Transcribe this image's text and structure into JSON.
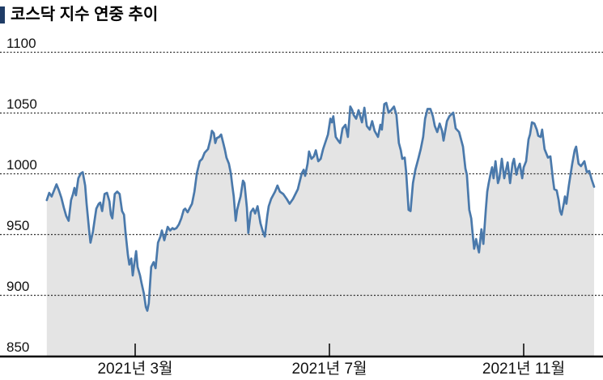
{
  "header": {
    "title": "코스닥 지수 연중 추이",
    "accent_color": "#1f3c66"
  },
  "chart_data": {
    "type": "area",
    "title": "코스닥 지수 연중 추이",
    "series_name": "코스닥 지수",
    "xlabel": "",
    "ylabel": "",
    "ylim": [
      850,
      1100
    ],
    "y_ticks": [
      850,
      900,
      950,
      1000,
      1050,
      1100
    ],
    "x_ticks": [
      {
        "month": 3,
        "label": "2021년 3월"
      },
      {
        "month": 7,
        "label": "2021년 7월"
      },
      {
        "month": 11,
        "label": "2021년 11월"
      }
    ],
    "grid": "dotted-horizontal",
    "legend": "none",
    "line_color": "#4a79ab",
    "fill_color": "#e4e4e4",
    "axis_color": "#000000",
    "points": [
      [
        1.18,
        978
      ],
      [
        1.23,
        984
      ],
      [
        1.28,
        981
      ],
      [
        1.33,
        986
      ],
      [
        1.38,
        991
      ],
      [
        1.43,
        986
      ],
      [
        1.48,
        980
      ],
      [
        1.53,
        972
      ],
      [
        1.58,
        965
      ],
      [
        1.63,
        961
      ],
      [
        1.68,
        978
      ],
      [
        1.72,
        983
      ],
      [
        1.75,
        988
      ],
      [
        1.78,
        982
      ],
      [
        1.83,
        996
      ],
      [
        1.88,
        1000
      ],
      [
        1.92,
        1001
      ],
      [
        1.97,
        990
      ],
      [
        2.0,
        975
      ],
      [
        2.05,
        954
      ],
      [
        2.08,
        943
      ],
      [
        2.13,
        952
      ],
      [
        2.17,
        963
      ],
      [
        2.2,
        971
      ],
      [
        2.25,
        975
      ],
      [
        2.28,
        976
      ],
      [
        2.32,
        969
      ],
      [
        2.37,
        983
      ],
      [
        2.42,
        984
      ],
      [
        2.47,
        977
      ],
      [
        2.5,
        966
      ],
      [
        2.53,
        963
      ],
      [
        2.58,
        983
      ],
      [
        2.63,
        985
      ],
      [
        2.68,
        983
      ],
      [
        2.73,
        969
      ],
      [
        2.77,
        966
      ],
      [
        2.8,
        952
      ],
      [
        2.85,
        933
      ],
      [
        2.88,
        925
      ],
      [
        2.92,
        930
      ],
      [
        2.95,
        916
      ],
      [
        2.98,
        925
      ],
      [
        3.02,
        936
      ],
      [
        3.05,
        923
      ],
      [
        3.1,
        916
      ],
      [
        3.13,
        910
      ],
      [
        3.18,
        901
      ],
      [
        3.22,
        890
      ],
      [
        3.25,
        887
      ],
      [
        3.28,
        893
      ],
      [
        3.33,
        923
      ],
      [
        3.38,
        927
      ],
      [
        3.42,
        922
      ],
      [
        3.47,
        943
      ],
      [
        3.52,
        948
      ],
      [
        3.55,
        953
      ],
      [
        3.6,
        945
      ],
      [
        3.67,
        956
      ],
      [
        3.72,
        953
      ],
      [
        3.77,
        955
      ],
      [
        3.8,
        954
      ],
      [
        3.85,
        955
      ],
      [
        3.9,
        958
      ],
      [
        3.95,
        963
      ],
      [
        4.0,
        970
      ],
      [
        4.03,
        971
      ],
      [
        4.08,
        968
      ],
      [
        4.13,
        972
      ],
      [
        4.17,
        975
      ],
      [
        4.22,
        985
      ],
      [
        4.27,
        1000
      ],
      [
        4.33,
        1010
      ],
      [
        4.38,
        1012
      ],
      [
        4.43,
        1017
      ],
      [
        4.5,
        1020
      ],
      [
        4.55,
        1028
      ],
      [
        4.58,
        1035
      ],
      [
        4.62,
        1033
      ],
      [
        4.65,
        1025
      ],
      [
        4.68,
        1029
      ],
      [
        4.73,
        1030
      ],
      [
        4.77,
        1032
      ],
      [
        4.82,
        1024
      ],
      [
        4.85,
        1019
      ],
      [
        4.88,
        1013
      ],
      [
        4.93,
        1008
      ],
      [
        4.97,
        1000
      ],
      [
        5.0,
        990
      ],
      [
        5.03,
        981
      ],
      [
        5.07,
        961
      ],
      [
        5.1,
        970
      ],
      [
        5.13,
        975
      ],
      [
        5.17,
        981
      ],
      [
        5.22,
        994
      ],
      [
        5.25,
        992
      ],
      [
        5.3,
        972
      ],
      [
        5.33,
        951
      ],
      [
        5.38,
        968
      ],
      [
        5.43,
        971
      ],
      [
        5.47,
        967
      ],
      [
        5.52,
        973
      ],
      [
        5.58,
        959
      ],
      [
        5.63,
        952
      ],
      [
        5.67,
        948
      ],
      [
        5.72,
        965
      ],
      [
        5.75,
        973
      ],
      [
        5.8,
        979
      ],
      [
        5.88,
        985
      ],
      [
        5.93,
        990
      ],
      [
        5.98,
        985
      ],
      [
        6.05,
        983
      ],
      [
        6.12,
        979
      ],
      [
        6.18,
        975
      ],
      [
        6.25,
        979
      ],
      [
        6.3,
        983
      ],
      [
        6.35,
        987
      ],
      [
        6.38,
        992
      ],
      [
        6.43,
        1000
      ],
      [
        6.47,
        1003
      ],
      [
        6.5,
        998
      ],
      [
        6.55,
        1008
      ],
      [
        6.58,
        1018
      ],
      [
        6.63,
        1012
      ],
      [
        6.68,
        1014
      ],
      [
        6.72,
        1019
      ],
      [
        6.77,
        1010
      ],
      [
        6.82,
        1012
      ],
      [
        6.87,
        1020
      ],
      [
        6.92,
        1026
      ],
      [
        6.97,
        1032
      ],
      [
        7.02,
        1045
      ],
      [
        7.05,
        1042
      ],
      [
        7.08,
        1047
      ],
      [
        7.13,
        1030
      ],
      [
        7.18,
        1027
      ],
      [
        7.22,
        1025
      ],
      [
        7.27,
        1037
      ],
      [
        7.33,
        1040
      ],
      [
        7.38,
        1030
      ],
      [
        7.43,
        1055
      ],
      [
        7.47,
        1052
      ],
      [
        7.5,
        1048
      ],
      [
        7.55,
        1045
      ],
      [
        7.6,
        1052
      ],
      [
        7.67,
        1042
      ],
      [
        7.72,
        1054
      ],
      [
        7.77,
        1039
      ],
      [
        7.83,
        1036
      ],
      [
        7.88,
        1043
      ],
      [
        7.93,
        1035
      ],
      [
        8.0,
        1030
      ],
      [
        8.05,
        1040
      ],
      [
        8.08,
        1036
      ],
      [
        8.13,
        1057
      ],
      [
        8.17,
        1058
      ],
      [
        8.22,
        1050
      ],
      [
        8.27,
        1052
      ],
      [
        8.33,
        1055
      ],
      [
        8.38,
        1048
      ],
      [
        8.43,
        1025
      ],
      [
        8.47,
        1019
      ],
      [
        8.5,
        1012
      ],
      [
        8.55,
        1013
      ],
      [
        8.58,
        1001
      ],
      [
        8.63,
        970
      ],
      [
        8.67,
        969
      ],
      [
        8.72,
        992
      ],
      [
        8.77,
        1003
      ],
      [
        8.83,
        1012
      ],
      [
        8.88,
        1020
      ],
      [
        8.93,
        1030
      ],
      [
        8.97,
        1045
      ],
      [
        9.02,
        1053
      ],
      [
        9.08,
        1053
      ],
      [
        9.13,
        1047
      ],
      [
        9.17,
        1039
      ],
      [
        9.22,
        1034
      ],
      [
        9.27,
        1041
      ],
      [
        9.32,
        1035
      ],
      [
        9.35,
        1027
      ],
      [
        9.42,
        1043
      ],
      [
        9.47,
        1047
      ],
      [
        9.55,
        1050
      ],
      [
        9.6,
        1037
      ],
      [
        9.67,
        1034
      ],
      [
        9.75,
        1022
      ],
      [
        9.8,
        1004
      ],
      [
        9.83,
        999
      ],
      [
        9.88,
        970
      ],
      [
        9.92,
        963
      ],
      [
        9.95,
        950
      ],
      [
        9.98,
        938
      ],
      [
        10.02,
        946
      ],
      [
        10.05,
        940
      ],
      [
        10.08,
        935
      ],
      [
        10.13,
        954
      ],
      [
        10.17,
        942
      ],
      [
        10.22,
        970
      ],
      [
        10.25,
        985
      ],
      [
        10.28,
        992
      ],
      [
        10.32,
        1000
      ],
      [
        10.35,
        1005
      ],
      [
        10.38,
        996
      ],
      [
        10.42,
        1010
      ],
      [
        10.47,
        992
      ],
      [
        10.5,
        996
      ],
      [
        10.55,
        1012
      ],
      [
        10.6,
        996
      ],
      [
        10.67,
        1009
      ],
      [
        10.72,
        992
      ],
      [
        10.77,
        1008
      ],
      [
        10.8,
        1012
      ],
      [
        10.85,
        999
      ],
      [
        10.88,
        1004
      ],
      [
        10.92,
        1008
      ],
      [
        10.97,
        996
      ],
      [
        11.0,
        1005
      ],
      [
        11.05,
        1010
      ],
      [
        11.1,
        1028
      ],
      [
        11.13,
        1032
      ],
      [
        11.17,
        1042
      ],
      [
        11.22,
        1041
      ],
      [
        11.27,
        1036
      ],
      [
        11.3,
        1031
      ],
      [
        11.35,
        1030
      ],
      [
        11.38,
        1036
      ],
      [
        11.43,
        1020
      ],
      [
        11.47,
        1016
      ],
      [
        11.5,
        1013
      ],
      [
        11.55,
        1014
      ],
      [
        11.6,
        996
      ],
      [
        11.63,
        987
      ],
      [
        11.68,
        986
      ],
      [
        11.72,
        978
      ],
      [
        11.75,
        969
      ],
      [
        11.78,
        966
      ],
      [
        11.83,
        976
      ],
      [
        11.85,
        981
      ],
      [
        11.88,
        975
      ],
      [
        11.93,
        990
      ],
      [
        12.0,
        1008
      ],
      [
        12.05,
        1019
      ],
      [
        12.08,
        1022
      ],
      [
        12.13,
        1008
      ],
      [
        12.18,
        1006
      ],
      [
        12.25,
        1010
      ],
      [
        12.3,
        1001
      ],
      [
        12.35,
        1002
      ],
      [
        12.4,
        995
      ],
      [
        12.45,
        989
      ]
    ]
  }
}
